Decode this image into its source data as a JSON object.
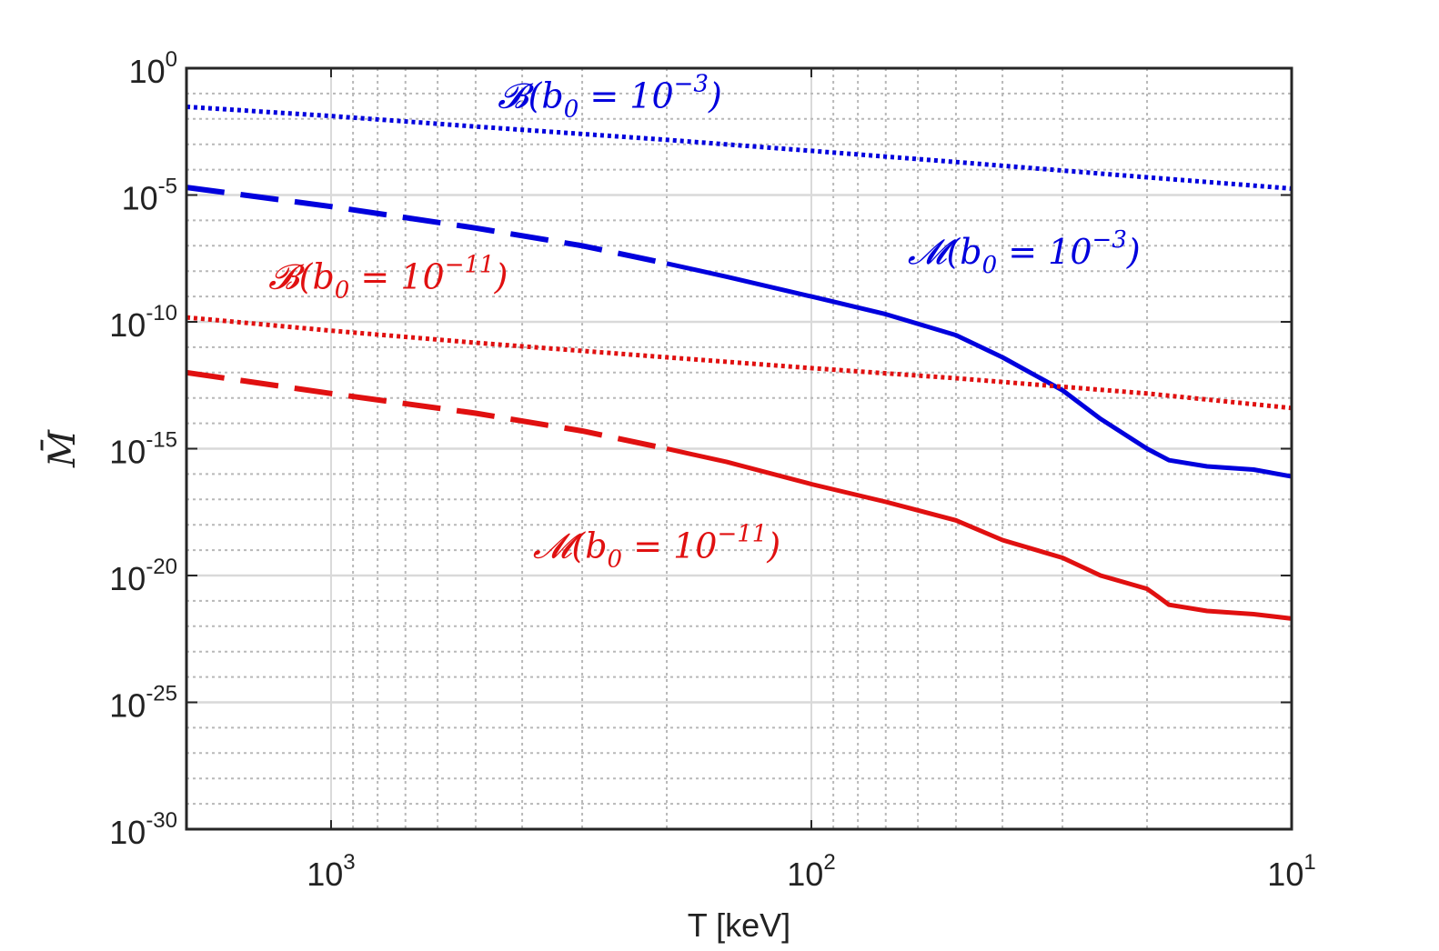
{
  "chart_data": {
    "type": "line",
    "title": "",
    "xlabel": "T [keV]",
    "ylabel": "M̄",
    "xscale": "log",
    "yscale": "log",
    "x_direction": "reversed",
    "xlim": [
      2000,
      10
    ],
    "ylim": [
      1e-30,
      1
    ],
    "grid": true,
    "minor_grid": true,
    "x_ticks": [
      {
        "value": 1000,
        "base": "10",
        "exp": "3"
      },
      {
        "value": 100,
        "base": "10",
        "exp": "2"
      },
      {
        "value": 10,
        "base": "10",
        "exp": "1"
      }
    ],
    "y_ticks": [
      {
        "value": 1,
        "base": "10",
        "exp": "0"
      },
      {
        "value": 1e-05,
        "base": "10",
        "exp": "-5"
      },
      {
        "value": 1e-10,
        "base": "10",
        "exp": "-10"
      },
      {
        "value": 1e-15,
        "base": "10",
        "exp": "-15"
      },
      {
        "value": 1e-20,
        "base": "10",
        "exp": "-20"
      },
      {
        "value": 1e-25,
        "base": "10",
        "exp": "-25"
      },
      {
        "value": 1e-30,
        "base": "10",
        "exp": "-30"
      }
    ],
    "series": [
      {
        "name": "B(b0 = 10^-3)",
        "color": "#0000dd",
        "style": "dotted",
        "x": [
          2000,
          1000,
          500,
          200,
          100,
          50,
          20,
          10
        ],
        "y": [
          0.03,
          0.013,
          0.005,
          0.0015,
          0.00055,
          0.0002,
          5e-05,
          1.8e-05
        ]
      },
      {
        "name": "M(b0 = 10^-3)",
        "color": "#0000dd",
        "style": "dashed-then-solid",
        "solid_from": 200,
        "x": [
          2000,
          1000,
          500,
          300,
          200,
          150,
          100,
          70,
          50,
          40,
          30,
          25,
          20,
          19,
          18,
          15,
          12,
          10
        ],
        "y": [
          2e-05,
          3.5e-06,
          5e-07,
          1e-07,
          2e-08,
          6e-09,
          1e-09,
          2e-10,
          3e-11,
          4e-12,
          2e-13,
          1.5e-14,
          1e-15,
          6e-16,
          3.5e-16,
          2e-16,
          1.5e-16,
          8e-17
        ]
      },
      {
        "name": "B(b0 = 10^-11)",
        "color": "#e01010",
        "style": "dotted",
        "x": [
          2000,
          1000,
          500,
          200,
          100,
          50,
          20,
          10
        ],
        "y": [
          1.5e-10,
          4.5e-11,
          1.5e-11,
          4e-12,
          1.5e-12,
          6e-13,
          1.5e-13,
          4e-14
        ]
      },
      {
        "name": "M(b0 = 10^-11)",
        "color": "#e01010",
        "style": "dashed-then-solid",
        "solid_from": 200,
        "x": [
          2000,
          1000,
          500,
          300,
          200,
          150,
          100,
          70,
          50,
          40,
          30,
          25,
          20,
          19,
          18,
          15,
          12,
          10
        ],
        "y": [
          1e-12,
          1.5e-13,
          2.5e-14,
          5e-15,
          1e-15,
          3e-16,
          4e-17,
          8e-18,
          1.5e-18,
          2.5e-19,
          5e-20,
          1e-20,
          3e-21,
          1.5e-21,
          7e-22,
          4e-22,
          3e-22,
          2e-22
        ]
      }
    ],
    "annotations": [
      {
        "label": "B(b0 = 10^-3)",
        "color": "#0000dd",
        "x": 450,
        "y": 0.028,
        "letter": "𝓑",
        "sub": "0",
        "exp": "−3"
      },
      {
        "label": "M(b0 = 10^-3)",
        "color": "#0000dd",
        "x": 63,
        "y": 2e-08,
        "letter": "𝓜",
        "sub": "0",
        "exp": "−3"
      },
      {
        "label": "B(b0 = 10^-11)",
        "color": "#e01010",
        "x": 1350,
        "y": 2e-09,
        "letter": "𝓑",
        "sub": "0",
        "exp": "−11"
      },
      {
        "label": "M(b0 = 10^-11)",
        "color": "#e01010",
        "x": 380,
        "y": 5e-20,
        "letter": "𝓜",
        "sub": "0",
        "exp": "−11"
      }
    ]
  }
}
